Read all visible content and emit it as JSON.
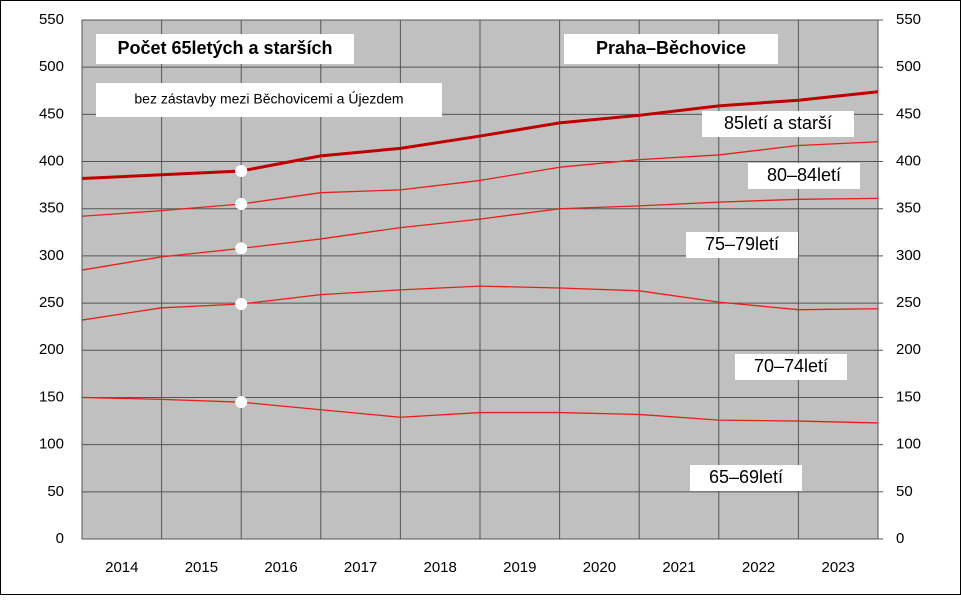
{
  "chart_data": {
    "type": "stacked_line",
    "title": "Počet 65letých a starších",
    "subtitle": "Praha–Běchovice",
    "annotation": "bez zástavby mezi Běchovicemi a Újezdem",
    "x": [
      2014,
      2015,
      2016,
      2017,
      2018,
      2019,
      2020,
      2021,
      2022,
      2023,
      2024
    ],
    "xlim": [
      2014,
      2024
    ],
    "xticks": [
      {
        "value": 2014.5,
        "label": "2014"
      },
      {
        "value": 2015.5,
        "label": "2015"
      },
      {
        "value": 2016.5,
        "label": "2016"
      },
      {
        "value": 2017.5,
        "label": "2017"
      },
      {
        "value": 2018.5,
        "label": "2018"
      },
      {
        "value": 2019.5,
        "label": "2019"
      },
      {
        "value": 2020.5,
        "label": "2020"
      },
      {
        "value": 2021.5,
        "label": "2021"
      },
      {
        "value": 2022.5,
        "label": "2022"
      },
      {
        "value": 2023.5,
        "label": "2023"
      }
    ],
    "ylim": [
      0,
      550
    ],
    "yticks": [
      0,
      50,
      100,
      150,
      200,
      250,
      300,
      350,
      400,
      450,
      500,
      550
    ],
    "y2lim": [
      0,
      550
    ],
    "y2ticks": [
      0,
      50,
      100,
      150,
      200,
      250,
      300,
      350,
      400,
      450,
      500,
      550
    ],
    "grid": true,
    "series": [
      {
        "name": "65–69letí",
        "color": "#e8201a",
        "width": 1.3,
        "values": [
          150,
          148,
          145,
          137,
          129,
          134,
          134,
          132,
          126,
          125,
          123
        ]
      },
      {
        "name": "70–74letí",
        "color": "#e8201a",
        "width": 1.3,
        "values": [
          82,
          97,
          104,
          122,
          135,
          134,
          132,
          131,
          125,
          118,
          121
        ]
      },
      {
        "name": "75–79letí",
        "color": "#e8201a",
        "width": 1.3,
        "values": [
          53,
          54,
          59,
          59,
          66,
          71,
          84,
          90,
          106,
          117,
          117
        ]
      },
      {
        "name": "80–84letí",
        "color": "#e8201a",
        "width": 1.3,
        "values": [
          57,
          49,
          47,
          49,
          40,
          41,
          44,
          49,
          50,
          57,
          60
        ]
      },
      {
        "name": "85letí a starší",
        "color": "#c00000",
        "width": 3,
        "values": [
          40,
          38,
          35,
          39,
          44,
          47,
          47,
          47,
          52,
          48,
          53
        ]
      }
    ]
  }
}
